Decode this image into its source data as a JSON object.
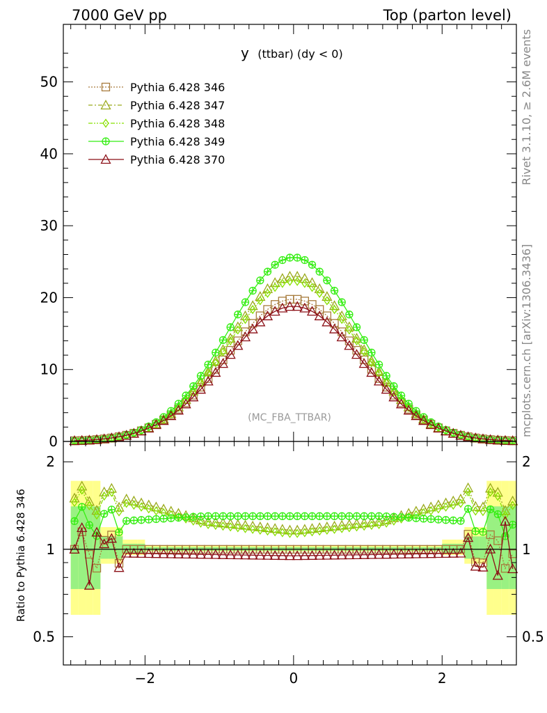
{
  "header": {
    "left": "7000 GeV pp",
    "right": "Top (parton level)"
  },
  "side": {
    "rivet": "Rivet 3.1.10, ≥ 2.6M events",
    "source": "mcplots.cern.ch [arXiv:1306.3436]"
  },
  "chart_data": {
    "type": "line",
    "title": "y (ttbar) (dy < 0)",
    "title_main": "y",
    "title_sub": "(ttbar) (dy < 0)",
    "analysis_tag": "(MC_FBA_TTBAR)",
    "main_panel": {
      "xlim": [
        -3.1,
        3.0
      ],
      "ylim": [
        0,
        58
      ],
      "yticks": [
        0,
        10,
        20,
        30,
        40,
        50
      ],
      "ytick_labels": [
        "0",
        "10",
        "20",
        "30",
        "40",
        "50"
      ]
    },
    "ratio_panel": {
      "ylabel": "Ratio to Pythia 6.428 346",
      "ylim": [
        0.4,
        2.35
      ],
      "log_y": true,
      "yticks": [
        0.5,
        1,
        2
      ],
      "ytick_labels": [
        "0.5",
        "1",
        "2"
      ],
      "xticks": [
        -2,
        0,
        2
      ],
      "xtick_labels": [
        "−2",
        "0",
        "2"
      ]
    },
    "series": [
      {
        "name": "Pythia 6.428 346",
        "color": "#a77b3c",
        "marker": "square",
        "line": "dotted",
        "peak": 19.8,
        "width": 0.9,
        "ratio_shape": [
          1.0,
          1.0,
          1.0
        ]
      },
      {
        "name": "Pythia 6.428 347",
        "color": "#9aaa1c",
        "marker": "triangle",
        "line": "dashdot",
        "peak": 23.0,
        "width": 0.875,
        "ratio_shape": [
          1.16,
          1.25,
          1.5
        ]
      },
      {
        "name": "Pythia 6.428 348",
        "color": "#88e000",
        "marker": "diamond",
        "line": "dashdotdot",
        "peak": 22.3,
        "width": 0.88,
        "ratio_shape": [
          1.13,
          1.22,
          1.45
        ]
      },
      {
        "name": "Pythia 6.428 349",
        "color": "#33ee10",
        "marker": "circle",
        "line": "solid",
        "peak": 25.6,
        "width": 0.87,
        "ratio_shape": [
          1.3,
          1.3,
          1.25
        ]
      },
      {
        "name": "Pythia 6.428 370",
        "color": "#8b0f16",
        "marker": "triangle",
        "line": "solid",
        "peak": 18.8,
        "width": 0.905,
        "ratio_shape": [
          0.95,
          0.96,
          0.97
        ]
      }
    ]
  }
}
